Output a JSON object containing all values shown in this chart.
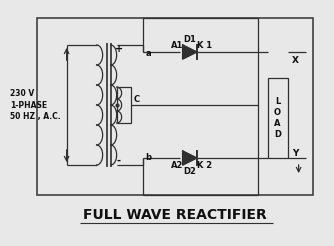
{
  "title": "FULL WAVE REACTIFIER",
  "bg_color": "#e8e8e8",
  "line_color": "#303030",
  "text_color": "#101010",
  "border_color": "#404040",
  "source_label": "230 V\n1-PHASE\n50 HZ , A.C.",
  "d1_label": "D1",
  "d2_label": "D2",
  "a1_label": "A1",
  "a2_label": "A2",
  "k1_label": "K 1",
  "k2_label": "K 2",
  "load_label": "L\nO\nA\nD",
  "x_label": "X",
  "y_label": "Y",
  "c_label": "C",
  "plus_label": "+",
  "minus_label": "-",
  "a_label": "a",
  "b_label": "b",
  "title_fontsize": 10,
  "label_fontsize": 6.0
}
